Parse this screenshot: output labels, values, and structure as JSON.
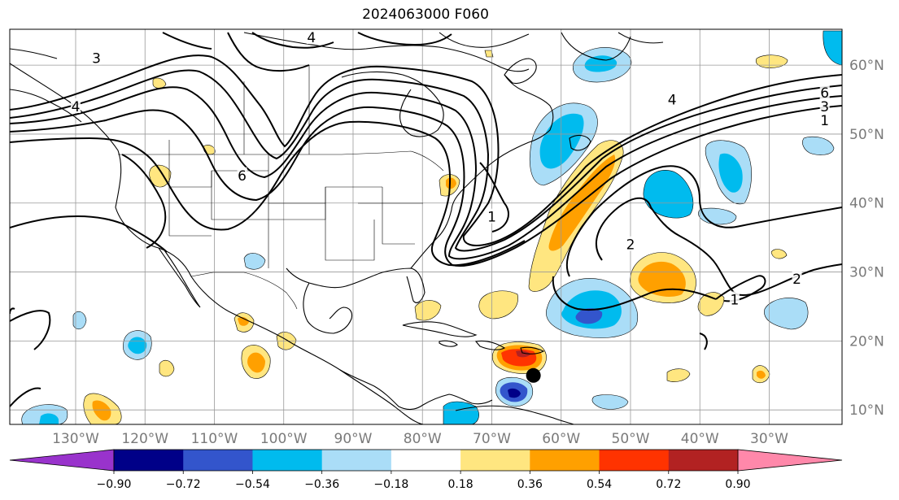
{
  "title": "2024063000 F060",
  "latitudes": [
    {
      "value": 10,
      "label": "10°N"
    },
    {
      "value": 20,
      "label": "20°N"
    },
    {
      "value": 30,
      "label": "30°N"
    },
    {
      "value": 40,
      "label": "40°N"
    },
    {
      "value": 50,
      "label": "50°N"
    },
    {
      "value": 60,
      "label": "60°N"
    }
  ],
  "longitudes": [
    {
      "value": -130,
      "label": "130°W"
    },
    {
      "value": -120,
      "label": "120°W"
    },
    {
      "value": -110,
      "label": "110°W"
    },
    {
      "value": -100,
      "label": "100°W"
    },
    {
      "value": -90,
      "label": "90°W"
    },
    {
      "value": -80,
      "label": "80°W"
    },
    {
      "value": -70,
      "label": "70°W"
    },
    {
      "value": -60,
      "label": "60°W"
    },
    {
      "value": -50,
      "label": "50°W"
    },
    {
      "value": -40,
      "label": "40°W"
    },
    {
      "value": -30,
      "label": "30°W"
    }
  ],
  "colorbar": {
    "under_color": "#9933cc",
    "over_color": "#ff88aa",
    "colors": [
      "#000088",
      "#3355cc",
      "#00bbee",
      "#aaddf7",
      "#ffffff",
      "#ffe680",
      "#ffa000",
      "#ff3300",
      "#b22222"
    ],
    "tick_labels": [
      "−0.90",
      "−0.72",
      "−0.54",
      "−0.36",
      "−0.18",
      "0.18",
      "0.36",
      "0.54",
      "0.72",
      "0.90"
    ]
  },
  "contour_labels": [
    {
      "text": "4",
      "lon": -130,
      "lat": 54
    },
    {
      "text": "3",
      "lon": -127,
      "lat": 61
    },
    {
      "text": "4",
      "lon": -96,
      "lat": 64
    },
    {
      "text": "6",
      "lon": -106,
      "lat": 44
    },
    {
      "text": "1",
      "lon": -70,
      "lat": 38
    },
    {
      "text": "6",
      "lon": -22,
      "lat": 56
    },
    {
      "text": "4",
      "lon": -44,
      "lat": 55
    },
    {
      "text": "3",
      "lon": -22,
      "lat": 54
    },
    {
      "text": "1",
      "lon": -22,
      "lat": 52
    },
    {
      "text": "2",
      "lon": -50,
      "lat": 34
    },
    {
      "text": "2",
      "lon": -26,
      "lat": 29
    },
    {
      "text": "1",
      "lon": -35,
      "lat": 26
    }
  ],
  "storm_marker": {
    "lon": -64,
    "lat": 15
  }
}
